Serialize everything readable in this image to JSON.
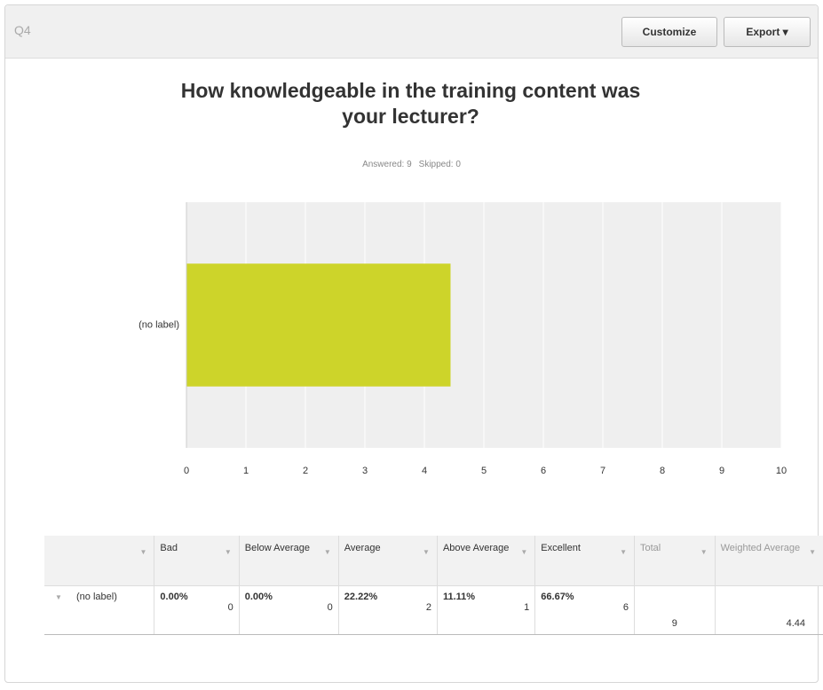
{
  "header": {
    "question": "Q4",
    "buttons": [
      "Customize",
      "Export"
    ]
  },
  "chart_data": {
    "type": "bar",
    "orientation": "horizontal",
    "title": "How knowledgeable in the training content was your lecturer?",
    "answered": "Answered: 9",
    "skipped": "Skipped: 0",
    "categories": [
      "(no label)"
    ],
    "values": [
      4.44
    ],
    "color": "#cdd42a",
    "xlim": [
      0,
      10
    ],
    "xticks": [
      0,
      1,
      2,
      3,
      4,
      5,
      6,
      7,
      8,
      9,
      10
    ],
    "grid": true
  },
  "table": {
    "columns": [
      "Bad",
      "Below Average",
      "Average",
      "Above Average",
      "Excellent",
      "Total",
      "Weighted Average"
    ],
    "rows": [
      {
        "label": "(no label)",
        "cells": [
          {
            "percent": "0.00%",
            "count": 0
          },
          {
            "percent": "0.00%",
            "count": 0
          },
          {
            "percent": "22.22%",
            "count": 2
          },
          {
            "percent": "11.11%",
            "count": 1
          },
          {
            "percent": "66.67%",
            "count": 6
          }
        ],
        "total": 9,
        "weighted_average": 4.44
      }
    ]
  }
}
